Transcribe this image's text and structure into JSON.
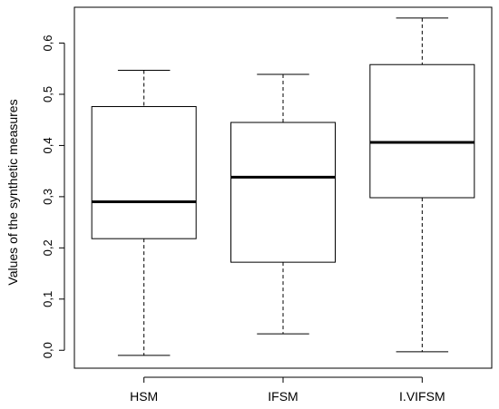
{
  "chart_data": {
    "type": "boxplot",
    "title": "",
    "xlabel": "",
    "ylabel": "Values of the synthetic measures",
    "ylim": [
      -0.035,
      0.67
    ],
    "yticks": [
      0.0,
      0.1,
      0.2,
      0.3,
      0.4,
      0.5,
      0.6
    ],
    "ytick_labels": [
      "0,0",
      "0,1",
      "0,2",
      "0,3",
      "0,4",
      "0,5",
      "0,6"
    ],
    "categories": [
      "HSM",
      "IFSM",
      "I.VIFSM"
    ],
    "boxes": [
      {
        "name": "HSM",
        "min": -0.01,
        "q1": 0.218,
        "median": 0.29,
        "q3": 0.476,
        "max": 0.547
      },
      {
        "name": "IFSM",
        "min": 0.032,
        "q1": 0.172,
        "median": 0.338,
        "q3": 0.445,
        "max": 0.539
      },
      {
        "name": "I.VIFSM",
        "min": -0.003,
        "q1": 0.298,
        "median": 0.406,
        "q3": 0.558,
        "max": 0.649
      }
    ],
    "grid": false,
    "legend": "none",
    "colors": {
      "box_fill": "#ffffff",
      "stroke": "#000000"
    }
  }
}
